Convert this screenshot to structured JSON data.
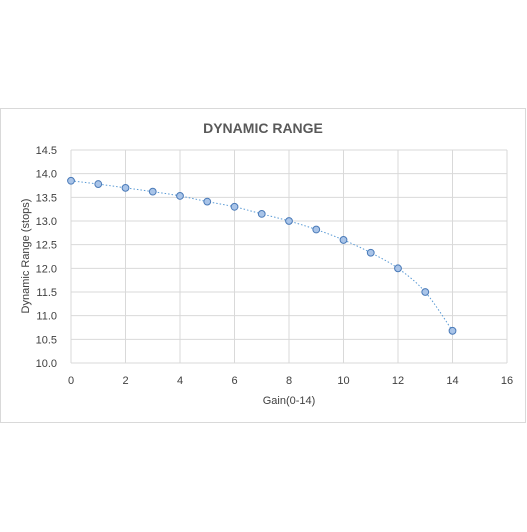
{
  "chart_data": {
    "type": "scatter",
    "title": "DYNAMIC RANGE",
    "xlabel": "Gain(0-14)",
    "ylabel": "Dynamic Range (stops)",
    "xlim": [
      0,
      16
    ],
    "ylim": [
      10.0,
      14.5
    ],
    "xticks": [
      0,
      2,
      4,
      6,
      8,
      10,
      12,
      14,
      16
    ],
    "yticks": [
      "10.0",
      "10.5",
      "11.0",
      "11.5",
      "12.0",
      "12.5",
      "13.0",
      "13.5",
      "14.0",
      "14.5"
    ],
    "grid": true,
    "trendline": "dotted",
    "series": [
      {
        "x": [
          0,
          1,
          2,
          3,
          4,
          5,
          6,
          7,
          8,
          9,
          10,
          11,
          12,
          13,
          14
        ],
        "y": [
          13.85,
          13.78,
          13.7,
          13.62,
          13.53,
          13.41,
          13.3,
          13.15,
          13.0,
          12.82,
          12.6,
          12.33,
          12.0,
          11.5,
          10.68
        ]
      }
    ],
    "colors": {
      "marker_fill": "#a9c4e8",
      "marker_stroke": "#4a7ab8",
      "trend": "#5b9bd5",
      "grid": "#d9d9d9",
      "title": "#595959",
      "text": "#404040"
    }
  }
}
